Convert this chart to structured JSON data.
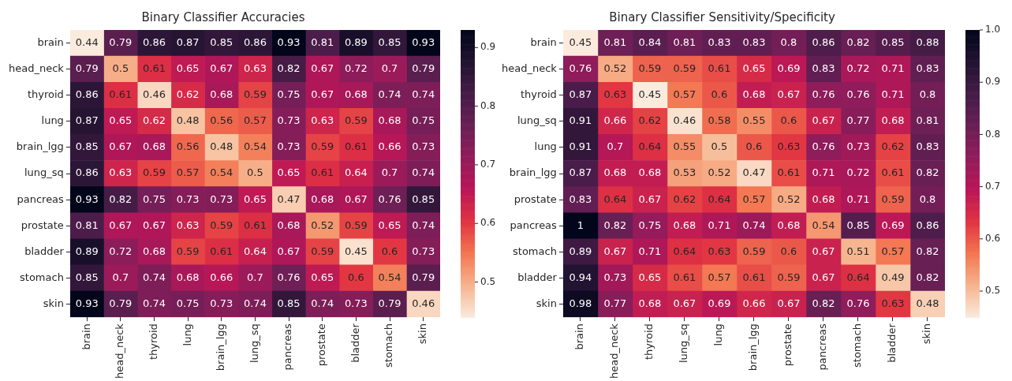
{
  "chart_data": [
    {
      "type": "heatmap",
      "title": "Binary Classifier Accuracies",
      "categories": [
        "brain",
        "head_neck",
        "thyroid",
        "lung",
        "brain_lgg",
        "lung_sq",
        "pancreas",
        "prostate",
        "bladder",
        "stomach",
        "skin"
      ],
      "y_categories": [
        "brain",
        "head_neck",
        "thyroid",
        "lung",
        "brain_lgg",
        "lung_sq",
        "pancreas",
        "prostate",
        "bladder",
        "stomach",
        "skin"
      ],
      "cells": [
        [
          0.44,
          0.79,
          0.86,
          0.87,
          0.85,
          0.86,
          0.93,
          0.81,
          0.89,
          0.85,
          0.93
        ],
        [
          0.79,
          0.5,
          0.61,
          0.65,
          0.67,
          0.63,
          0.82,
          0.67,
          0.72,
          0.7,
          0.79
        ],
        [
          0.86,
          0.61,
          0.46,
          0.62,
          0.68,
          0.59,
          0.75,
          0.67,
          0.68,
          0.74,
          0.74
        ],
        [
          0.87,
          0.65,
          0.62,
          0.48,
          0.56,
          0.57,
          0.73,
          0.63,
          0.59,
          0.68,
          0.75
        ],
        [
          0.85,
          0.67,
          0.68,
          0.56,
          0.48,
          0.54,
          0.73,
          0.59,
          0.61,
          0.66,
          0.73
        ],
        [
          0.86,
          0.63,
          0.59,
          0.57,
          0.54,
          0.5,
          0.65,
          0.61,
          0.64,
          0.7,
          0.74
        ],
        [
          0.93,
          0.82,
          0.75,
          0.73,
          0.73,
          0.65,
          0.47,
          0.68,
          0.67,
          0.76,
          0.85
        ],
        [
          0.81,
          0.67,
          0.67,
          0.63,
          0.59,
          0.61,
          0.68,
          0.52,
          0.59,
          0.65,
          0.74
        ],
        [
          0.89,
          0.72,
          0.68,
          0.59,
          0.61,
          0.64,
          0.67,
          0.59,
          0.45,
          0.6,
          0.73
        ],
        [
          0.85,
          0.7,
          0.74,
          0.68,
          0.66,
          0.7,
          0.76,
          0.65,
          0.6,
          0.54,
          0.79
        ],
        [
          0.93,
          0.79,
          0.74,
          0.75,
          0.73,
          0.74,
          0.85,
          0.74,
          0.73,
          0.79,
          0.46
        ]
      ],
      "clim": [
        0.44,
        0.93
      ],
      "cticks": [
        0.5,
        0.6,
        0.7,
        0.8,
        0.9
      ],
      "data_labels": true
    },
    {
      "type": "heatmap",
      "title": "Binary Classifier Sensitivity/Specificity",
      "categories": [
        "brain",
        "head_neck",
        "thyroid",
        "lung_sq",
        "lung",
        "brain_lgg",
        "prostate",
        "pancreas",
        "stomach",
        "bladder",
        "skin"
      ],
      "y_categories": [
        "brain",
        "head_neck",
        "thyroid",
        "lung_sq",
        "lung",
        "brain_lgg",
        "prostate",
        "pancreas",
        "stomach",
        "bladder",
        "skin"
      ],
      "cells": [
        [
          0.45,
          0.81,
          0.84,
          0.81,
          0.83,
          0.83,
          0.8,
          0.86,
          0.82,
          0.85,
          0.88
        ],
        [
          0.76,
          0.52,
          0.59,
          0.59,
          0.61,
          0.65,
          0.69,
          0.83,
          0.72,
          0.71,
          0.83
        ],
        [
          0.87,
          0.63,
          0.45,
          0.57,
          0.6,
          0.68,
          0.67,
          0.76,
          0.76,
          0.71,
          0.8
        ],
        [
          0.91,
          0.66,
          0.62,
          0.46,
          0.58,
          0.55,
          0.6,
          0.67,
          0.77,
          0.68,
          0.81
        ],
        [
          0.91,
          0.7,
          0.64,
          0.55,
          0.5,
          0.6,
          0.63,
          0.76,
          0.73,
          0.62,
          0.83
        ],
        [
          0.87,
          0.68,
          0.68,
          0.53,
          0.52,
          0.47,
          0.61,
          0.71,
          0.72,
          0.61,
          0.82
        ],
        [
          0.83,
          0.64,
          0.67,
          0.62,
          0.64,
          0.57,
          0.52,
          0.68,
          0.71,
          0.59,
          0.8
        ],
        [
          1,
          0.82,
          0.75,
          0.68,
          0.71,
          0.74,
          0.68,
          0.54,
          0.85,
          0.69,
          0.86
        ],
        [
          0.89,
          0.67,
          0.71,
          0.64,
          0.63,
          0.59,
          0.6,
          0.67,
          0.51,
          0.57,
          0.82
        ],
        [
          0.94,
          0.73,
          0.65,
          0.61,
          0.57,
          0.61,
          0.59,
          0.67,
          0.64,
          0.49,
          0.82
        ],
        [
          0.98,
          0.77,
          0.68,
          0.67,
          0.69,
          0.66,
          0.67,
          0.82,
          0.76,
          0.63,
          0.48
        ]
      ],
      "clim": [
        0.45,
        1
      ],
      "cticks": [
        0.5,
        0.6,
        0.7,
        0.8,
        0.9,
        {
          "value": 1,
          "label": "1.0"
        }
      ],
      "data_labels": true
    }
  ]
}
